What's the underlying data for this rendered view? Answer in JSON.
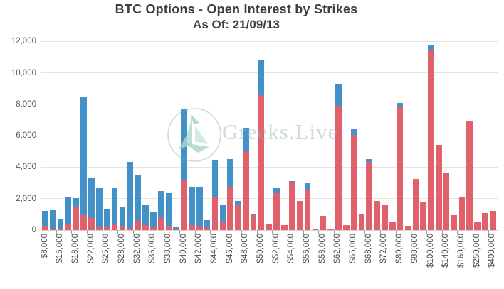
{
  "title": {
    "line1": "BTC Options - Open Interest by Strikes",
    "line2": "As Of: 21/09/13"
  },
  "watermark": {
    "text": "Greeks.Live",
    "logo": "sailboat-logo-icon"
  },
  "colors": {
    "bar_blue": "#4291c8",
    "bar_red": "#e0606b",
    "gridline": "#e3e3e3",
    "axis_zero_line": "#d2d2d2",
    "tick": "#9c9c9c",
    "y_label_text": "#565656",
    "x_label_text": "#4c4c4c",
    "title_text": "#3f3f3f",
    "watermark_teal": "#aed6d0"
  },
  "chart_data": {
    "type": "bar",
    "stacked": true,
    "title": "BTC Options - Open Interest by Strikes",
    "subtitle": "As Of: 21/09/13",
    "xlabel": "",
    "ylabel": "",
    "ylim": [
      0,
      12000
    ],
    "grid": "horizontal",
    "legend": "none",
    "y_axis": {
      "tick_step": 2000,
      "tick_labels": [
        "0",
        "2,000",
        "4,000",
        "6,000",
        "8,000",
        "10,000",
        "12,000"
      ]
    },
    "series_note": "Each bar is a stacked pair: red segment on bottom, blue segment on top. Bars without a label text are unlabeled intermediate strikes on the axis.",
    "bars": [
      {
        "label": "$8,000",
        "red": 250,
        "blue": 950
      },
      {
        "label": "",
        "red": 50,
        "blue": 1230
      },
      {
        "label": "$15,000",
        "red": 60,
        "blue": 640
      },
      {
        "label": "",
        "red": 360,
        "blue": 1715
      },
      {
        "label": "$18,000",
        "red": 1490,
        "blue": 525
      },
      {
        "label": "",
        "red": 930,
        "blue": 7550
      },
      {
        "label": "$22,000",
        "red": 780,
        "blue": 2560
      },
      {
        "label": "",
        "red": 210,
        "blue": 2450
      },
      {
        "label": "$25,000",
        "red": 180,
        "blue": 1130
      },
      {
        "label": "",
        "red": 360,
        "blue": 2300
      },
      {
        "label": "$28,000",
        "red": 260,
        "blue": 1200
      },
      {
        "label": "",
        "red": 140,
        "blue": 4205
      },
      {
        "label": "$32,000",
        "red": 600,
        "blue": 2920
      },
      {
        "label": "",
        "red": 300,
        "blue": 1310
      },
      {
        "label": "$35,000",
        "red": 225,
        "blue": 965
      },
      {
        "label": "",
        "red": 780,
        "blue": 1685
      },
      {
        "label": "$38,000",
        "red": 255,
        "blue": 2105
      },
      {
        "label": "",
        "red": 60,
        "blue": 160
      },
      {
        "label": "$40,000",
        "red": 3190,
        "blue": 4510
      },
      {
        "label": "",
        "red": 300,
        "blue": 2450
      },
      {
        "label": "$42,000",
        "red": 250,
        "blue": 2520
      },
      {
        "label": "",
        "red": 130,
        "blue": 500
      },
      {
        "label": "$44,000",
        "red": 2135,
        "blue": 2285
      },
      {
        "label": "",
        "red": 480,
        "blue": 1085
      },
      {
        "label": "$46,000",
        "red": 2765,
        "blue": 1730
      },
      {
        "label": "",
        "red": 1610,
        "blue": 225
      },
      {
        "label": "$48,000",
        "red": 4995,
        "blue": 1505
      },
      {
        "label": "",
        "red": 950,
        "blue": 60
      },
      {
        "label": "$50,000",
        "red": 8600,
        "blue": 2180
      },
      {
        "label": "",
        "red": 400,
        "blue": 0
      },
      {
        "label": "$52,000",
        "red": 2360,
        "blue": 300
      },
      {
        "label": "",
        "red": 330,
        "blue": 0
      },
      {
        "label": "$54,000",
        "red": 3050,
        "blue": 80
      },
      {
        "label": "",
        "red": 1835,
        "blue": 0
      },
      {
        "label": "$56,000",
        "red": 2585,
        "blue": 375
      },
      {
        "label": "",
        "red": 50,
        "blue": 0
      },
      {
        "label": "$58,000",
        "red": 900,
        "blue": 0
      },
      {
        "label": "",
        "red": 50,
        "blue": 0
      },
      {
        "label": "$62,000",
        "red": 7880,
        "blue": 1420
      },
      {
        "label": "",
        "red": 330,
        "blue": 0
      },
      {
        "label": "$65,000",
        "red": 6050,
        "blue": 400
      },
      {
        "label": "",
        "red": 1000,
        "blue": 0
      },
      {
        "label": "$68,000",
        "red": 4315,
        "blue": 195
      },
      {
        "label": "",
        "red": 1835,
        "blue": 0
      },
      {
        "label": "$72,000",
        "red": 1565,
        "blue": 0
      },
      {
        "label": "",
        "red": 515,
        "blue": 0
      },
      {
        "label": "$80,000",
        "red": 7850,
        "blue": 250
      },
      {
        "label": "",
        "red": 255,
        "blue": 0
      },
      {
        "label": "$88,000",
        "red": 3265,
        "blue": 0
      },
      {
        "label": "",
        "red": 1760,
        "blue": 0
      },
      {
        "label": "$100,000",
        "red": 11460,
        "blue": 330
      },
      {
        "label": "",
        "red": 5400,
        "blue": 0
      },
      {
        "label": "$140,000",
        "red": 3640,
        "blue": 0
      },
      {
        "label": "",
        "red": 960,
        "blue": 0
      },
      {
        "label": "$160,000",
        "red": 2060,
        "blue": 0
      },
      {
        "label": "",
        "red": 6950,
        "blue": 0
      },
      {
        "label": "$250,000",
        "red": 480,
        "blue": 0
      },
      {
        "label": "",
        "red": 1100,
        "blue": 0
      },
      {
        "label": "$400,000",
        "red": 1200,
        "blue": 0
      }
    ]
  }
}
